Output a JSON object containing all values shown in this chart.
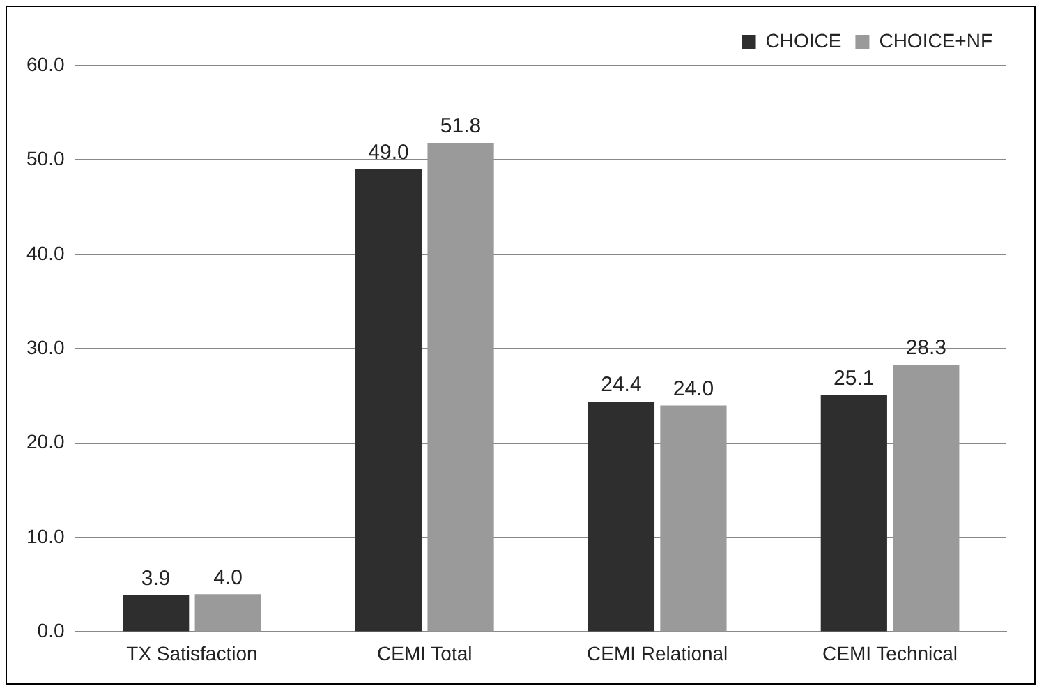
{
  "chart_data": {
    "type": "bar",
    "categories": [
      "TX Satisfaction",
      "CEMI Total",
      "CEMI Relational",
      "CEMI Technical"
    ],
    "series": [
      {
        "name": "CHOICE",
        "color": "#2e2e2e",
        "values": [
          3.9,
          49.0,
          24.4,
          25.1
        ],
        "value_labels": [
          "3.9",
          "49.0",
          "24.4",
          "25.1"
        ]
      },
      {
        "name": "CHOICE+NF",
        "color": "#9a9a9a",
        "values": [
          4.0,
          51.8,
          24.0,
          28.3
        ],
        "value_labels": [
          "4.0",
          "51.8",
          "24.0",
          "28.3"
        ]
      }
    ],
    "ylim": [
      0,
      60
    ],
    "yticks": [
      {
        "value": 0,
        "label": "0.0"
      },
      {
        "value": 10,
        "label": "10.0"
      },
      {
        "value": 20,
        "label": "20.0"
      },
      {
        "value": 30,
        "label": "30.0"
      },
      {
        "value": 40,
        "label": "40.0"
      },
      {
        "value": 50,
        "label": "50.0"
      },
      {
        "value": 60,
        "label": "60.0"
      }
    ],
    "grid": "y",
    "legend": "top right"
  }
}
